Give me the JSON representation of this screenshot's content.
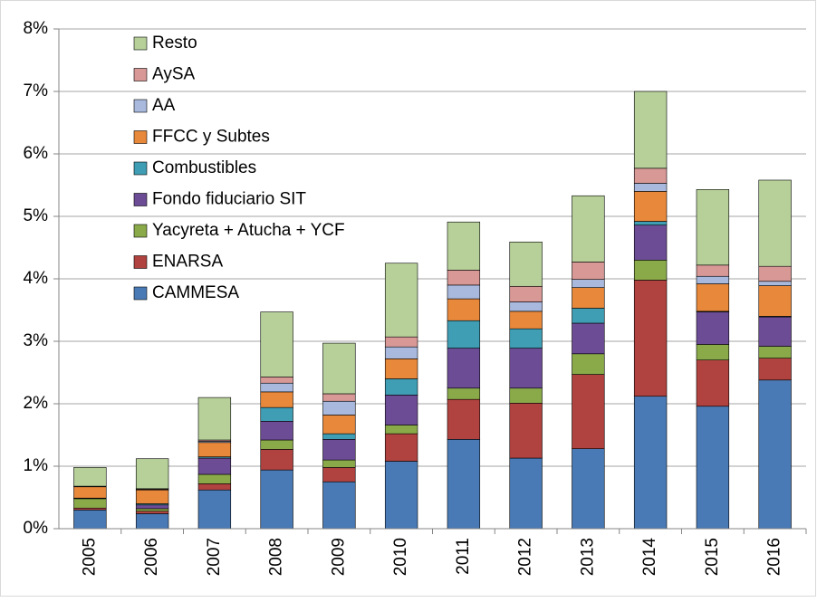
{
  "chart_data": {
    "type": "stacked_bar",
    "categories": [
      "2005",
      "2006",
      "2007",
      "2008",
      "2009",
      "2010",
      "2011",
      "2012",
      "2013",
      "2014",
      "2015",
      "2016"
    ],
    "series": [
      {
        "name": "CAMMESA",
        "color": "#4a7ab5",
        "values": [
          0.3,
          0.24,
          0.62,
          0.94,
          0.75,
          1.08,
          1.43,
          1.13,
          1.28,
          2.12,
          1.96,
          2.38
        ]
      },
      {
        "name": "ENARSA",
        "color": "#b0423f",
        "values": [
          0.03,
          0.04,
          0.1,
          0.33,
          0.23,
          0.44,
          0.64,
          0.88,
          1.19,
          1.86,
          0.74,
          0.35
        ]
      },
      {
        "name": "Yacyreta + Atucha + YCF",
        "color": "#8aaa4a",
        "values": [
          0.15,
          0.04,
          0.15,
          0.15,
          0.12,
          0.14,
          0.18,
          0.24,
          0.33,
          0.32,
          0.25,
          0.19
        ]
      },
      {
        "name": "Fondo fiduciario SIT",
        "color": "#6d4c96",
        "values": [
          0.01,
          0.06,
          0.26,
          0.3,
          0.33,
          0.48,
          0.64,
          0.64,
          0.49,
          0.56,
          0.52,
          0.47
        ]
      },
      {
        "name": "Combustibles",
        "color": "#3f9eb4",
        "values": [
          0,
          0.02,
          0.02,
          0.22,
          0.09,
          0.26,
          0.44,
          0.31,
          0.24,
          0.06,
          0.01,
          0.01
        ]
      },
      {
        "name": "FFCC y Subtes",
        "color": "#e8883b",
        "values": [
          0.18,
          0.22,
          0.23,
          0.25,
          0.3,
          0.32,
          0.35,
          0.28,
          0.33,
          0.48,
          0.44,
          0.49
        ]
      },
      {
        "name": "AA",
        "color": "#a8b9dd",
        "values": [
          0,
          0.01,
          0.02,
          0.14,
          0.22,
          0.19,
          0.22,
          0.15,
          0.13,
          0.13,
          0.12,
          0.07
        ]
      },
      {
        "name": "AySA",
        "color": "#d79896",
        "values": [
          0.01,
          0.01,
          0.02,
          0.1,
          0.12,
          0.16,
          0.24,
          0.25,
          0.28,
          0.24,
          0.18,
          0.24
        ]
      },
      {
        "name": "Resto",
        "color": "#b7d09a",
        "values": [
          0.3,
          0.48,
          0.68,
          1.04,
          0.81,
          1.18,
          0.77,
          0.71,
          1.06,
          1.23,
          1.21,
          1.38
        ]
      }
    ],
    "ylim": [
      0,
      8
    ],
    "yticks": [
      {
        "value": 0,
        "label": "0%"
      },
      {
        "value": 1,
        "label": "1%"
      },
      {
        "value": 2,
        "label": "2%"
      },
      {
        "value": 3,
        "label": "3%"
      },
      {
        "value": 4,
        "label": "4%"
      },
      {
        "value": 5,
        "label": "5%"
      },
      {
        "value": 6,
        "label": "6%"
      },
      {
        "value": 7,
        "label": "7%"
      },
      {
        "value": 8,
        "label": "8%"
      }
    ],
    "grid": true,
    "legend": "upper left"
  }
}
